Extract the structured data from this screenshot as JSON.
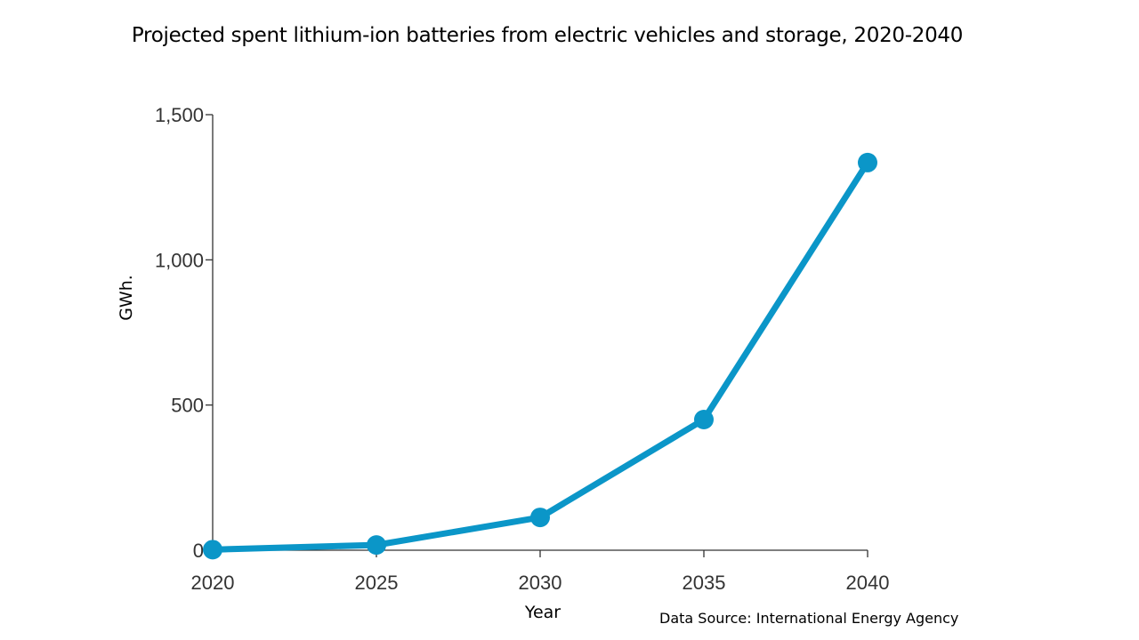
{
  "chart_data": {
    "type": "line",
    "title": "Projected spent lithium-ion batteries from electric vehicles and storage, 2020-2040",
    "xlabel": "Year",
    "ylabel": "GWh.",
    "x": [
      2020,
      2025,
      2030,
      2035,
      2040
    ],
    "series": [
      {
        "values": [
          2,
          18,
          113,
          450,
          1335
        ]
      }
    ],
    "xlim": [
      2020,
      2040
    ],
    "ylim": [
      0,
      1500
    ],
    "x_ticks": [
      "2020",
      "2025",
      "2030",
      "2035",
      "2040"
    ],
    "y_ticks": [
      "0",
      "500",
      "1,000",
      "1,500"
    ],
    "grid": false,
    "legend": "none",
    "colors": {
      "line": "#0b96c8",
      "axis": "#333333"
    }
  },
  "source_note": "Data Source: International Energy Agency"
}
